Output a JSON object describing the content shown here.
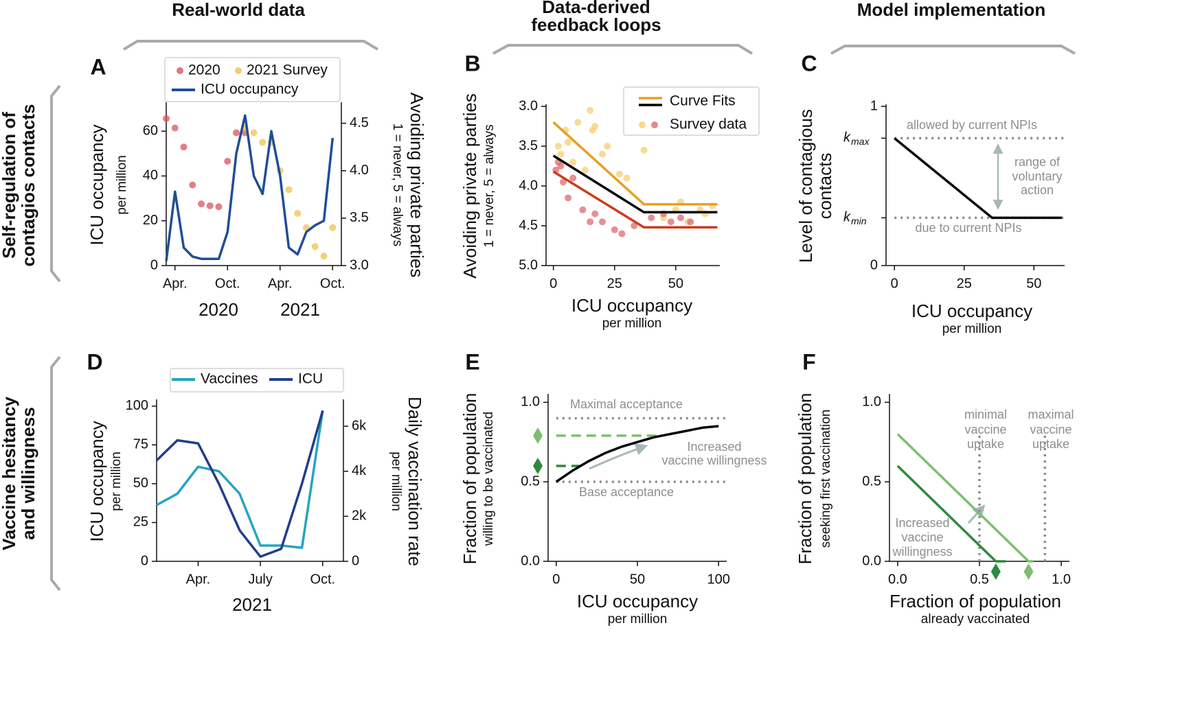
{
  "column_headers": [
    [
      "Real-world data"
    ],
    [
      "Data-derived",
      "feedback loops"
    ],
    [
      "Model implementation"
    ]
  ],
  "row_labels": [
    [
      "Self-regulation of",
      "contagios contacts"
    ],
    [
      "Vaccine hesitancy",
      "and willingness"
    ]
  ],
  "chart_data": [
    {
      "panel": "A",
      "type": "line",
      "xlim": [
        "2020-03",
        "2021-11"
      ],
      "xticks": [
        {
          "value": "2020-04",
          "label": "Apr."
        },
        {
          "value": "2020-10",
          "label": "Oct."
        },
        {
          "value": "2021-04",
          "label": "Apr."
        },
        {
          "value": "2021-10",
          "label": "Oct."
        }
      ],
      "x_group_labels": [
        "2020",
        "2021"
      ],
      "ylim": [
        0,
        72
      ],
      "yticks": [
        0,
        20,
        40,
        60
      ],
      "ylabel": "ICU occupancy",
      "ylabel_sub": "per million",
      "y2lim": [
        3.0,
        4.7
      ],
      "y2ticks": [
        {
          "value": 3,
          "label": "3.0"
        },
        3.5,
        {
          "value": 4,
          "label": "4.0"
        },
        4.5
      ],
      "y2label": "Avoiding private parties",
      "y2label_sub": "1 = never, 5 = always",
      "series": [
        {
          "name": "2020",
          "color": "#d9545e",
          "mark": "scatter",
          "axis": "y2",
          "x": [
            "2020-03",
            "2020-04",
            "2020-05",
            "2020-06",
            "2020-07",
            "2020-08",
            "2020-09",
            "2020-10",
            "2020-11",
            "2020-12"
          ],
          "values": [
            4.55,
            4.45,
            4.25,
            3.85,
            3.65,
            3.63,
            3.62,
            4.1,
            4.4,
            4.4
          ]
        },
        {
          "name": "2021 Survey",
          "color": "#f2c14e",
          "mark": "scatter",
          "axis": "y2",
          "x": [
            "2020-12",
            "2021-01",
            "2021-02",
            "2021-03",
            "2021-04",
            "2021-05",
            "2021-06",
            "2021-07",
            "2021-08",
            "2021-09",
            "2021-10"
          ],
          "values": [
            4.45,
            4.4,
            4.3,
            4.3,
            4.0,
            3.8,
            3.55,
            3.4,
            3.2,
            3.1,
            3.4
          ]
        },
        {
          "name": "ICU occupancy",
          "color": "#1f4e96",
          "mark": "line",
          "x": [
            "2020-03",
            "2020-04",
            "2020-05",
            "2020-06",
            "2020-07",
            "2020-08",
            "2020-09",
            "2020-10",
            "2020-11",
            "2020-12",
            "2021-01",
            "2021-02",
            "2021-03",
            "2021-04",
            "2021-05",
            "2021-06",
            "2021-07",
            "2021-08",
            "2021-09",
            "2021-10"
          ],
          "values": [
            2,
            33,
            8,
            4,
            3,
            3,
            3,
            15,
            50,
            67,
            40,
            32,
            60,
            40,
            8,
            5,
            15,
            18,
            20,
            57
          ]
        }
      ]
    },
    {
      "panel": "B",
      "type": "line",
      "xlim": [
        -3,
        68
      ],
      "xticks": [
        0,
        25,
        50
      ],
      "xlabel": "ICU occupancy",
      "xlabel_sub": "per million",
      "ylim": [
        5,
        3
      ],
      "yticks": [
        {
          "value": 3,
          "label": "3.0"
        },
        3.5,
        {
          "value": 4,
          "label": "4.0"
        },
        4.5,
        {
          "value": 5,
          "label": "5.0"
        }
      ],
      "ylabel": "Avoiding private parties",
      "ylabel_sub": "1 = never, 5 = always",
      "legend": [
        {
          "label": "Curve Fits",
          "kind": "line",
          "colors": [
            "#e8a020",
            "#000000"
          ]
        },
        {
          "label": "Survey data",
          "kind": "marker",
          "colors": [
            "#f5cf70",
            "#dd6a72"
          ]
        }
      ],
      "series": [
        {
          "color": "#f5cf70",
          "mark": "scatter",
          "x": [
            2,
            3,
            5,
            6,
            8,
            10,
            13,
            15,
            16,
            17,
            20,
            22,
            27,
            30,
            37,
            45,
            50,
            52,
            55,
            60,
            62,
            65
          ],
          "values": [
            3.5,
            3.6,
            3.3,
            3.45,
            3.7,
            3.2,
            3.8,
            3.05,
            3.3,
            3.25,
            3.6,
            3.5,
            3.85,
            3.9,
            3.55,
            4.4,
            4.3,
            4.2,
            4.45,
            4.3,
            4.35,
            4.25
          ]
        },
        {
          "color": "#dd6a72",
          "mark": "scatter",
          "x": [
            1,
            2,
            3,
            4,
            6,
            8,
            12,
            15,
            17,
            20,
            25,
            28,
            33,
            40,
            45,
            48,
            52,
            56
          ],
          "values": [
            3.8,
            3.7,
            3.75,
            3.95,
            4.15,
            3.9,
            4.3,
            4.45,
            4.35,
            4.45,
            4.55,
            4.6,
            4.5,
            4.4,
            4.35,
            4.45,
            4.4,
            4.45
          ]
        },
        {
          "color": "#e8a020",
          "mark": "line",
          "x": [
            0,
            37,
            67
          ],
          "values": [
            3.2,
            4.23,
            4.23
          ]
        },
        {
          "color": "#000000",
          "mark": "line",
          "x": [
            0,
            37,
            67
          ],
          "values": [
            3.62,
            4.33,
            4.33
          ]
        },
        {
          "color": "#cc3b1f",
          "mark": "line",
          "x": [
            0,
            37,
            67
          ],
          "values": [
            3.82,
            4.52,
            4.52
          ]
        }
      ]
    },
    {
      "panel": "C",
      "type": "line",
      "xlim": [
        -3,
        61
      ],
      "xticks": [
        0,
        25,
        50
      ],
      "xlabel": "ICU occupancy",
      "xlabel_sub": "per million",
      "ylim": [
        0,
        1
      ],
      "yticks": [
        0,
        {
          "value": 0.3,
          "label": "k",
          "sub": "min"
        },
        {
          "value": 0.8,
          "label": "k",
          "sub": "max"
        },
        1
      ],
      "ylabel": "Level of contagious",
      "ylabel_sub": "contacts",
      "hlines": [
        {
          "value": 0.8
        },
        {
          "value": 0.3
        }
      ],
      "annotations": [
        [
          "allowed by current NPIs"
        ],
        [
          "due to current NPIs"
        ],
        [
          "range of",
          "voluntary",
          "action"
        ]
      ],
      "series": [
        {
          "color": "#000000",
          "mark": "line",
          "x": [
            0,
            35,
            60
          ],
          "values": [
            0.8,
            0.3,
            0.3
          ]
        }
      ]
    },
    {
      "panel": "D",
      "type": "line",
      "xlim": [
        "2021-02",
        "2021-11"
      ],
      "xticks": [
        {
          "value": "2021-04",
          "label": "Apr."
        },
        {
          "value": "2021-07",
          "label": "July"
        },
        {
          "value": "2021-10",
          "label": "Oct."
        }
      ],
      "x_group_labels": [
        "2021"
      ],
      "ylim": [
        0,
        103
      ],
      "yticks": [
        0,
        25,
        50,
        75,
        100
      ],
      "ylabel": "ICU occupancy",
      "ylabel_sub": "per million",
      "y2lim": [
        0,
        7100
      ],
      "y2ticks": [
        0,
        {
          "value": 2000,
          "label": "2k"
        },
        {
          "value": 4000,
          "label": "4k"
        },
        {
          "value": 6000,
          "label": "6k"
        }
      ],
      "y2label": "Daily vaccination rate",
      "y2label_sub": "per million",
      "series": [
        {
          "name": "Vaccines",
          "color": "#27a3c2",
          "mark": "line",
          "axis": "y2",
          "x": [
            "2021-02",
            "2021-03",
            "2021-04",
            "2021-05",
            "2021-06",
            "2021-07",
            "2021-08",
            "2021-09",
            "2021-10"
          ],
          "values": [
            2500,
            3000,
            4200,
            4000,
            3000,
            700,
            700,
            600,
            6700
          ]
        },
        {
          "name": "ICU",
          "color": "#1f3f8c",
          "mark": "line",
          "x": [
            "2021-02",
            "2021-03",
            "2021-04",
            "2021-05",
            "2021-06",
            "2021-07",
            "2021-08",
            "2021-09",
            "2021-10"
          ],
          "values": [
            65,
            78,
            76,
            50,
            20,
            3,
            8,
            50,
            97
          ]
        }
      ]
    },
    {
      "panel": "E",
      "type": "line",
      "xlim": [
        -5,
        105
      ],
      "xticks": [
        0,
        50,
        100
      ],
      "xlabel": "ICU occupancy",
      "xlabel_sub": "per million",
      "ylim": [
        0,
        1.04
      ],
      "yticks": [
        {
          "value": 0,
          "label": "0.0"
        },
        0.5,
        {
          "value": 1,
          "label": "1.0"
        }
      ],
      "ylabel": "Fraction of population",
      "ylabel_sub": "willing to be vaccinated",
      "hlines": [
        {
          "value": 0.9
        },
        {
          "value": 0.5
        }
      ],
      "annotations": [
        [
          "Maximal acceptance"
        ],
        [
          "Base acceptance"
        ],
        [
          "Increased",
          "vaccine willingness"
        ]
      ],
      "series": [
        {
          "color": "#7cbf72",
          "mark": "dashed",
          "x": [
            0,
            63
          ],
          "values": [
            0.79,
            0.79
          ]
        },
        {
          "color": "#2d8a3c",
          "mark": "dashed",
          "x": [
            0,
            17
          ],
          "values": [
            0.6,
            0.6
          ]
        },
        {
          "color": "#000000",
          "mark": "line",
          "x": [
            0,
            10,
            20,
            30,
            40,
            50,
            60,
            70,
            80,
            90,
            100
          ],
          "values": [
            0.5,
            0.57,
            0.63,
            0.68,
            0.72,
            0.75,
            0.78,
            0.8,
            0.82,
            0.84,
            0.85
          ]
        },
        {
          "color": "#7cbf72",
          "mark": "diamond",
          "values": [
            0.79
          ]
        },
        {
          "color": "#2d8a3c",
          "mark": "diamond",
          "values": [
            0.6
          ]
        }
      ]
    },
    {
      "panel": "F",
      "type": "line",
      "xlim": [
        -0.05,
        1.05
      ],
      "xticks": [
        {
          "value": 0,
          "label": "0.0"
        },
        0.5,
        {
          "value": 1,
          "label": "1.0"
        }
      ],
      "xlabel": "Fraction of population",
      "xlabel_sub": "already vaccinated",
      "ylim": [
        0,
        1.04
      ],
      "yticks": [
        {
          "value": 0,
          "label": "0.0"
        },
        0.5,
        {
          "value": 1,
          "label": "1.0"
        }
      ],
      "ylabel": "Fraction of population",
      "ylabel_sub": "seeking first vaccination",
      "vlines": [
        {
          "value": 0.5
        },
        {
          "value": 0.9
        }
      ],
      "annotations": [
        [
          "minimal",
          "vaccine",
          "uptake"
        ],
        [
          "maximal",
          "vaccine",
          "uptake"
        ],
        [
          "Increased",
          "vaccine",
          "willingness"
        ]
      ],
      "series": [
        {
          "color": "#7cbf72",
          "mark": "line",
          "x": [
            0,
            0.8,
            0.83
          ],
          "values": [
            0.8,
            0,
            0
          ]
        },
        {
          "color": "#2d8a3c",
          "mark": "line",
          "x": [
            0,
            0.6,
            0.66
          ],
          "values": [
            0.6,
            0,
            0
          ]
        },
        {
          "color": "#2d8a3c",
          "mark": "diamond-x",
          "x": [
            0.6
          ]
        },
        {
          "color": "#7cbf72",
          "mark": "diamond-x",
          "x": [
            0.8
          ]
        }
      ]
    }
  ]
}
